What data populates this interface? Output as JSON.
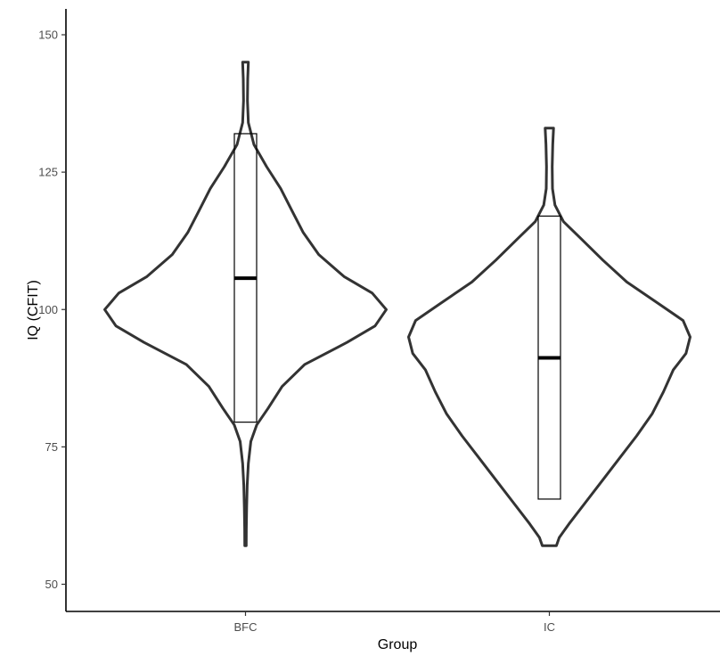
{
  "chart_data": {
    "type": "violin",
    "xlabel": "Group",
    "ylabel": "IQ (CFIT)",
    "categories": [
      "BFC",
      "IC"
    ],
    "ylim": [
      45,
      155
    ],
    "yticks": [
      50,
      75,
      100,
      125,
      150
    ],
    "grid": false,
    "legend": "none",
    "colors": {
      "violin_outline": "#333333",
      "box_outline": "#000000",
      "axis": "#000000",
      "tick_label": "#4d4d4d"
    },
    "groups": [
      {
        "label": "BFC",
        "min": 57,
        "max": 145,
        "box": {
          "q1": 79.5,
          "median": 105.7,
          "q3": 132
        },
        "density": [
          [
            57,
            0.005
          ],
          [
            60,
            0.006
          ],
          [
            64,
            0.008
          ],
          [
            68,
            0.012
          ],
          [
            72,
            0.02
          ],
          [
            76,
            0.038
          ],
          [
            79,
            0.08
          ],
          [
            82,
            0.16
          ],
          [
            86,
            0.26
          ],
          [
            90,
            0.42
          ],
          [
            94,
            0.72
          ],
          [
            97,
            0.92
          ],
          [
            100,
            1.0
          ],
          [
            103,
            0.9
          ],
          [
            106,
            0.7
          ],
          [
            110,
            0.52
          ],
          [
            114,
            0.41
          ],
          [
            118,
            0.33
          ],
          [
            122,
            0.25
          ],
          [
            126,
            0.15
          ],
          [
            130,
            0.06
          ],
          [
            134,
            0.02
          ],
          [
            138,
            0.014
          ],
          [
            142,
            0.016
          ],
          [
            145,
            0.02
          ]
        ]
      },
      {
        "label": "IC",
        "min": 57,
        "max": 133,
        "box": {
          "q1": 65.5,
          "median": 91.2,
          "q3": 117
        },
        "density": [
          [
            57,
            0.05
          ],
          [
            58.5,
            0.07
          ],
          [
            61,
            0.14
          ],
          [
            65,
            0.26
          ],
          [
            69,
            0.38
          ],
          [
            73,
            0.5
          ],
          [
            77,
            0.62
          ],
          [
            81,
            0.73
          ],
          [
            85,
            0.81
          ],
          [
            89,
            0.88
          ],
          [
            92,
            0.97
          ],
          [
            95,
            1.0
          ],
          [
            98,
            0.95
          ],
          [
            101,
            0.78
          ],
          [
            105,
            0.55
          ],
          [
            109,
            0.38
          ],
          [
            113,
            0.22
          ],
          [
            116,
            0.1
          ],
          [
            119,
            0.04
          ],
          [
            122,
            0.022
          ],
          [
            126,
            0.02
          ],
          [
            130,
            0.024
          ],
          [
            133,
            0.03
          ]
        ]
      }
    ]
  }
}
